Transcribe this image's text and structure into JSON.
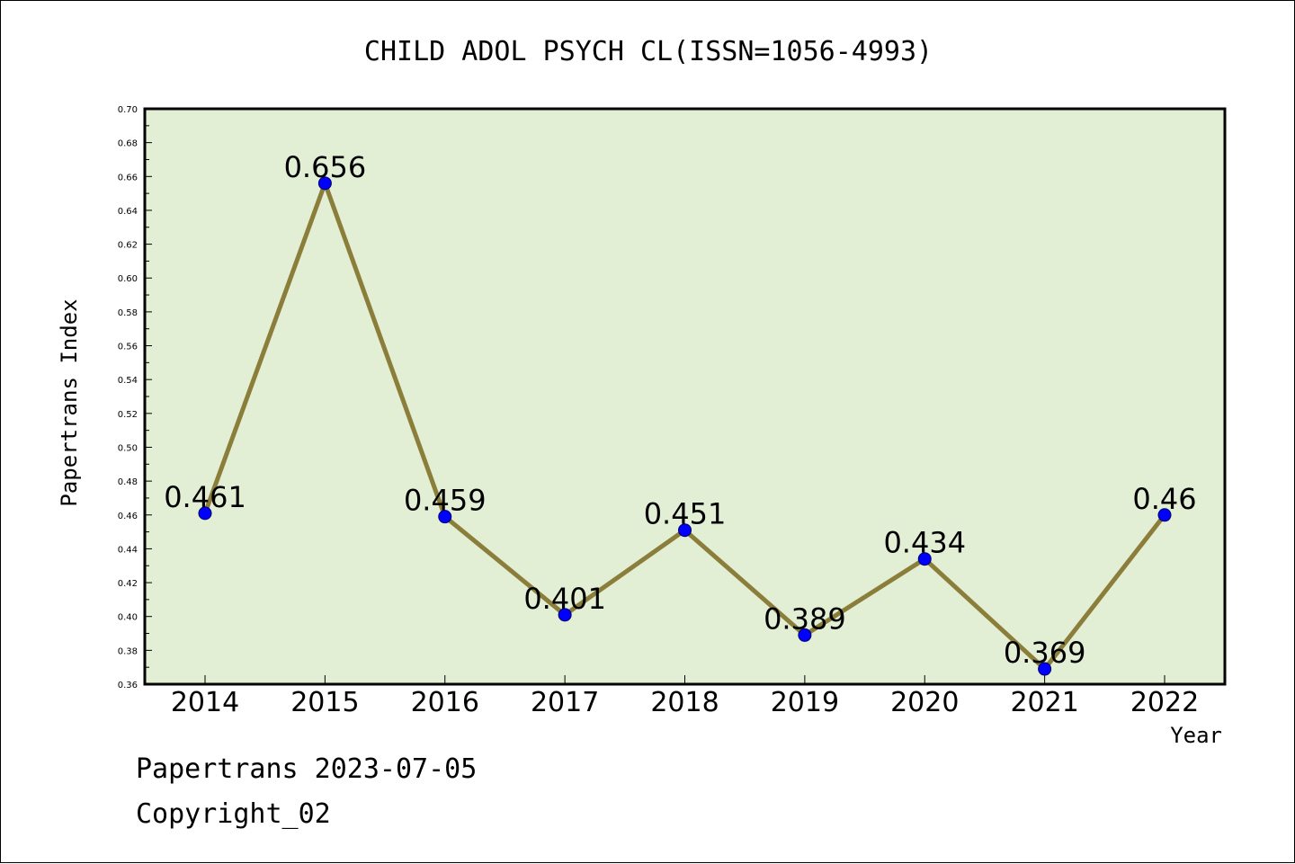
{
  "chart_data": {
    "type": "line",
    "title": "CHILD ADOL PSYCH CL(ISSN=1056-4993)",
    "xlabel": "Year",
    "ylabel": "Papertrans Index",
    "categories": [
      "2014",
      "2015",
      "2016",
      "2017",
      "2018",
      "2019",
      "2020",
      "2021",
      "2022"
    ],
    "series": [
      {
        "values": [
          0.461,
          0.656,
          0.459,
          0.401,
          0.451,
          0.389,
          0.434,
          0.369,
          0.46
        ],
        "data_labels": [
          "0.461",
          "0.656",
          "0.459",
          "0.401",
          "0.451",
          "0.389",
          "0.434",
          "0.369",
          "0.46"
        ]
      }
    ],
    "ylim": [
      0.36,
      0.7
    ],
    "yticks": [
      "0.36",
      "0.38",
      "0.40",
      "0.42",
      "0.44",
      "0.46",
      "0.48",
      "0.50",
      "0.52",
      "0.54",
      "0.56",
      "0.58",
      "0.60",
      "0.62",
      "0.64",
      "0.66",
      "0.68",
      "0.70"
    ],
    "grid": false,
    "colors": {
      "plot_background": "#e2efd5",
      "line": "#8b7e3a",
      "marker": "#0000ff"
    }
  },
  "footer": {
    "line1": "Papertrans 2023-07-05",
    "line2": "Copyright_02"
  }
}
